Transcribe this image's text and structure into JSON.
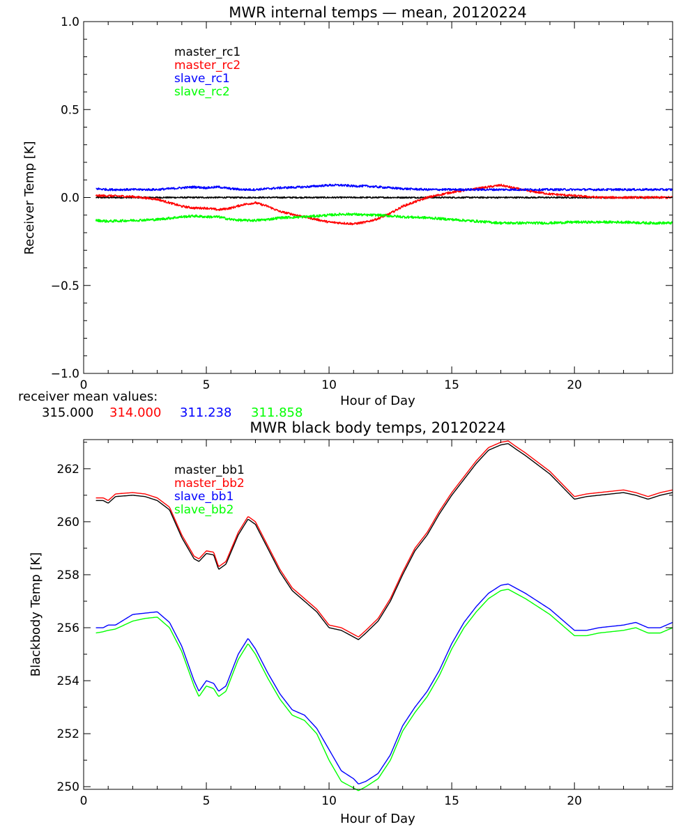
{
  "colors": {
    "black": "#000000",
    "red": "#ff0000",
    "blue": "#0000ff",
    "green": "#00ff00"
  },
  "receiver_means": {
    "label": "receiver mean values:",
    "values": [
      "315.000",
      "314.000",
      "311.238",
      "311.858"
    ]
  },
  "chart_data": [
    {
      "type": "line",
      "title": "MWR internal temps — mean, 20120224",
      "xlabel": "Hour of Day",
      "ylabel": "Receiver Temp [K]",
      "xlim": [
        0,
        24
      ],
      "ylim": [
        -1.0,
        1.0
      ],
      "xticks": [
        0,
        5,
        10,
        15,
        20
      ],
      "xtick_labels": [
        "0",
        "5",
        "10",
        "15",
        "20"
      ],
      "yticks": [
        -1.0,
        -0.5,
        0.0,
        0.5,
        1.0
      ],
      "ytick_labels": [
        "−1.0",
        "−0.5",
        "0.0",
        "0.5",
        "1.0"
      ],
      "legend_position": "top-left",
      "x": [
        0.5,
        1,
        2,
        3,
        4,
        4.5,
        5,
        5.5,
        6,
        6.5,
        7,
        7.5,
        8,
        9,
        10,
        10.5,
        11,
        11.5,
        12,
        12.5,
        13,
        14,
        15,
        16,
        17,
        18,
        19,
        20,
        21,
        22,
        23,
        24
      ],
      "series": [
        {
          "name": "master_rc1",
          "color": "black",
          "noise": 0.004,
          "values": [
            0,
            0,
            0,
            0,
            0,
            0,
            0,
            0,
            0,
            0,
            0,
            0,
            0,
            0,
            0,
            0,
            0,
            0,
            0,
            0,
            0,
            0,
            0,
            0,
            0,
            0,
            0,
            0,
            0,
            0,
            0,
            0
          ]
        },
        {
          "name": "master_rc2",
          "color": "red",
          "noise": 0.006,
          "values": [
            0.01,
            0.01,
            0.005,
            -0.01,
            -0.05,
            -0.06,
            -0.06,
            -0.07,
            -0.06,
            -0.04,
            -0.03,
            -0.05,
            -0.08,
            -0.11,
            -0.14,
            -0.145,
            -0.15,
            -0.14,
            -0.12,
            -0.09,
            -0.05,
            0.0,
            0.03,
            0.05,
            0.07,
            0.04,
            0.02,
            0.01,
            0.0,
            0.0,
            0.0,
            0.0
          ]
        },
        {
          "name": "slave_rc1",
          "color": "blue",
          "noise": 0.006,
          "values": [
            0.05,
            0.045,
            0.045,
            0.045,
            0.055,
            0.06,
            0.055,
            0.06,
            0.05,
            0.045,
            0.045,
            0.05,
            0.055,
            0.06,
            0.07,
            0.07,
            0.065,
            0.065,
            0.06,
            0.055,
            0.05,
            0.045,
            0.045,
            0.045,
            0.045,
            0.045,
            0.045,
            0.045,
            0.045,
            0.045,
            0.045,
            0.045
          ]
        },
        {
          "name": "slave_rc2",
          "color": "green",
          "noise": 0.007,
          "values": [
            -0.13,
            -0.135,
            -0.13,
            -0.125,
            -0.11,
            -0.105,
            -0.11,
            -0.11,
            -0.125,
            -0.13,
            -0.13,
            -0.125,
            -0.115,
            -0.11,
            -0.1,
            -0.095,
            -0.095,
            -0.1,
            -0.1,
            -0.105,
            -0.11,
            -0.115,
            -0.125,
            -0.135,
            -0.145,
            -0.145,
            -0.145,
            -0.14,
            -0.14,
            -0.14,
            -0.145,
            -0.145
          ]
        }
      ]
    },
    {
      "type": "line",
      "title": "MWR black body temps, 20120224",
      "xlabel": "Hour of Day",
      "ylabel": "Blackbody Temp [K]",
      "xlim": [
        0,
        24
      ],
      "ylim": [
        249.9,
        263.1
      ],
      "xticks": [
        0,
        5,
        10,
        15,
        20
      ],
      "xtick_labels": [
        "0",
        "5",
        "10",
        "15",
        "20"
      ],
      "yticks": [
        250,
        252,
        254,
        256,
        258,
        260,
        262
      ],
      "ytick_labels": [
        "250",
        "252",
        "254",
        "256",
        "258",
        "260",
        "262"
      ],
      "legend_position": "top-left",
      "x": [
        0.5,
        0.8,
        1.0,
        1.3,
        2.0,
        2.5,
        3.0,
        3.5,
        4.0,
        4.5,
        4.7,
        5.0,
        5.3,
        5.5,
        5.8,
        6.3,
        6.7,
        7.0,
        7.5,
        8.0,
        8.5,
        9.0,
        9.5,
        10.0,
        10.5,
        11.0,
        11.2,
        11.5,
        12.0,
        12.5,
        13.0,
        13.5,
        14.0,
        14.5,
        15.0,
        15.5,
        16.0,
        16.5,
        17.0,
        17.3,
        17.6,
        18.0,
        19.0,
        20.0,
        20.5,
        21.0,
        22.0,
        22.5,
        23.0,
        23.5,
        24.0
      ],
      "series": [
        {
          "name": "master_bb1",
          "color": "black",
          "values": [
            260.8,
            260.8,
            260.7,
            260.95,
            261.0,
            260.95,
            260.8,
            260.45,
            259.4,
            258.6,
            258.5,
            258.8,
            258.75,
            258.2,
            258.4,
            259.5,
            260.1,
            259.9,
            259.0,
            258.1,
            257.4,
            257.0,
            256.6,
            256.0,
            255.9,
            255.65,
            255.55,
            255.8,
            256.25,
            257.0,
            258.0,
            258.9,
            259.5,
            260.3,
            261.0,
            261.6,
            262.2,
            262.7,
            262.9,
            262.95,
            262.75,
            262.5,
            261.8,
            260.85,
            260.95,
            261.0,
            261.1,
            261.0,
            260.85,
            261.0,
            261.1
          ]
        },
        {
          "name": "master_bb2",
          "color": "red",
          "values": [
            260.9,
            260.9,
            260.8,
            261.05,
            261.1,
            261.05,
            260.9,
            260.55,
            259.5,
            258.7,
            258.6,
            258.9,
            258.85,
            258.3,
            258.5,
            259.6,
            260.2,
            260.0,
            259.1,
            258.2,
            257.5,
            257.1,
            256.7,
            256.1,
            256.0,
            255.75,
            255.65,
            255.9,
            256.35,
            257.1,
            258.1,
            259.0,
            259.6,
            260.4,
            261.1,
            261.7,
            262.3,
            262.8,
            263.0,
            263.05,
            262.85,
            262.6,
            261.9,
            260.95,
            261.05,
            261.1,
            261.2,
            261.1,
            260.95,
            261.1,
            261.2
          ]
        },
        {
          "name": "slave_bb1",
          "color": "blue",
          "values": [
            256.0,
            256.0,
            256.1,
            256.1,
            256.5,
            256.55,
            256.6,
            256.2,
            255.3,
            254.0,
            253.6,
            254.0,
            253.9,
            253.6,
            253.8,
            255.0,
            255.6,
            255.2,
            254.3,
            253.5,
            252.9,
            252.7,
            252.2,
            251.4,
            250.6,
            250.3,
            250.1,
            250.2,
            250.5,
            251.2,
            252.3,
            253.0,
            253.6,
            254.4,
            255.4,
            256.2,
            256.8,
            257.3,
            257.6,
            257.65,
            257.5,
            257.3,
            256.7,
            255.9,
            255.9,
            256.0,
            256.1,
            256.2,
            256.0,
            256.0,
            256.2
          ]
        },
        {
          "name": "slave_bb2",
          "color": "green",
          "values": [
            255.8,
            255.85,
            255.9,
            255.95,
            256.25,
            256.35,
            256.4,
            256.0,
            255.1,
            253.8,
            253.4,
            253.8,
            253.7,
            253.4,
            253.6,
            254.8,
            255.4,
            255.0,
            254.1,
            253.3,
            252.7,
            252.5,
            252.0,
            251.0,
            250.2,
            249.95,
            249.85,
            250.0,
            250.3,
            251.0,
            252.1,
            252.8,
            253.4,
            254.2,
            255.2,
            256.0,
            256.6,
            257.1,
            257.4,
            257.45,
            257.3,
            257.1,
            256.5,
            255.7,
            255.7,
            255.8,
            255.9,
            256.0,
            255.8,
            255.8,
            256.0
          ]
        }
      ]
    }
  ]
}
